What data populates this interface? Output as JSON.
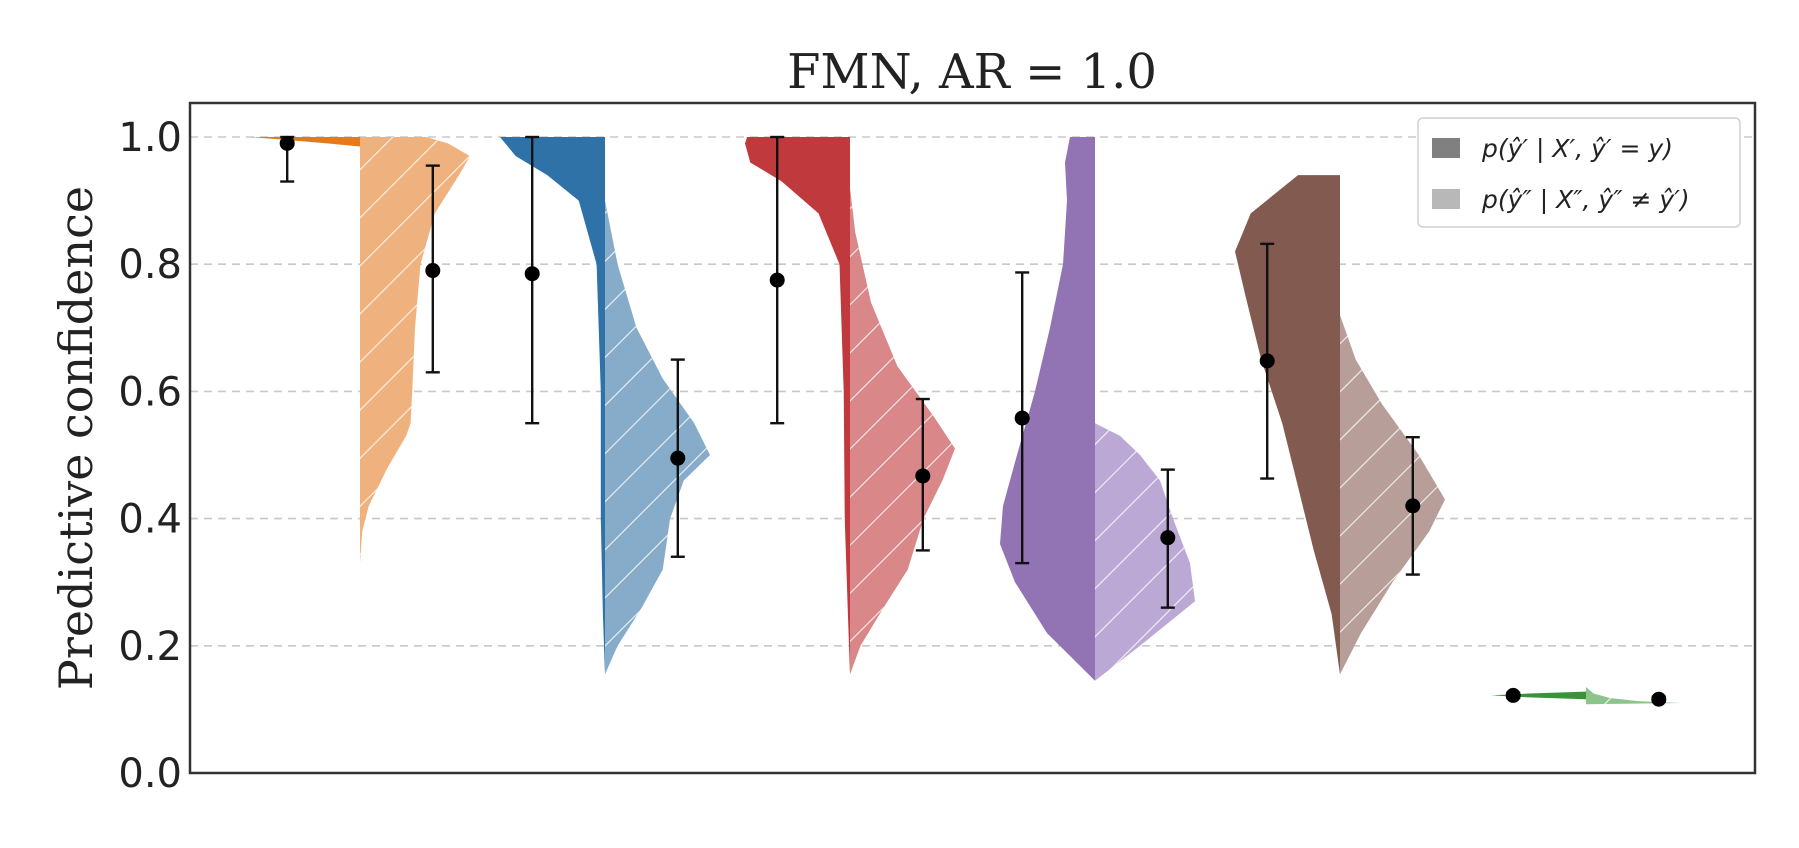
{
  "chart_data": {
    "type": "violin",
    "title": "FMN, AR = 1.0",
    "xlabel": "",
    "ylabel": "Predictive confidence",
    "ylim": [
      0.0,
      1.05
    ],
    "yticks": [
      "0.0",
      "0.2",
      "0.4",
      "0.6",
      "0.8",
      "1.0"
    ],
    "grid": "horizontal dashed",
    "legend_placement": "top-right",
    "legend": [
      {
        "label": "p(ŷ′ | X′, ŷ′ = y)",
        "style": "solid",
        "color": "#808080"
      },
      {
        "label": "p(ŷ″ | X″, ŷ″ ≠ ŷ′)",
        "style": "light",
        "color": "#b8b8b8"
      }
    ],
    "groups": [
      {
        "color": "#e37a1c",
        "light_color": "#efb27e",
        "left": {
          "mean": 0.99,
          "err_low": 0.93,
          "err_high": 1.0,
          "min": 0.985,
          "max": 1.0,
          "profile": [
            [
              0.985,
              0.0
            ],
            [
              0.99,
              0.3
            ],
            [
              0.995,
              0.65
            ],
            [
              1.0,
              1.0
            ]
          ]
        },
        "right": {
          "mean": 0.79,
          "err_low": 0.63,
          "err_high": 0.955,
          "min": 0.33,
          "max": 1.0,
          "profile": [
            [
              0.33,
              0.0
            ],
            [
              0.38,
              0.02
            ],
            [
              0.42,
              0.08
            ],
            [
              0.48,
              0.25
            ],
            [
              0.53,
              0.42
            ],
            [
              0.55,
              0.46
            ],
            [
              0.62,
              0.48
            ],
            [
              0.7,
              0.5
            ],
            [
              0.8,
              0.55
            ],
            [
              0.88,
              0.68
            ],
            [
              0.94,
              0.9
            ],
            [
              0.97,
              1.0
            ],
            [
              0.99,
              0.8
            ],
            [
              1.0,
              0.6
            ]
          ]
        }
      },
      {
        "color": "#2e72a8",
        "light_color": "#86acca",
        "left": {
          "mean": 0.785,
          "err_low": 0.55,
          "err_high": 1.0,
          "min": 0.155,
          "max": 1.0,
          "profile": [
            [
              0.155,
              0.0
            ],
            [
              0.25,
              0.02
            ],
            [
              0.4,
              0.04
            ],
            [
              0.6,
              0.04
            ],
            [
              0.8,
              0.08
            ],
            [
              0.9,
              0.25
            ],
            [
              0.94,
              0.55
            ],
            [
              0.97,
              0.85
            ],
            [
              0.99,
              0.95
            ],
            [
              1.0,
              1.0
            ]
          ]
        },
        "right": {
          "mean": 0.495,
          "err_low": 0.34,
          "err_high": 0.65,
          "min": 0.155,
          "max": 0.9,
          "profile": [
            [
              0.155,
              0.0
            ],
            [
              0.2,
              0.12
            ],
            [
              0.26,
              0.35
            ],
            [
              0.32,
              0.55
            ],
            [
              0.4,
              0.62
            ],
            [
              0.46,
              0.75
            ],
            [
              0.5,
              1.0
            ],
            [
              0.55,
              0.85
            ],
            [
              0.62,
              0.55
            ],
            [
              0.7,
              0.3
            ],
            [
              0.8,
              0.12
            ],
            [
              0.9,
              0.0
            ]
          ]
        }
      },
      {
        "color": "#c0393c",
        "light_color": "#d98788",
        "left": {
          "mean": 0.775,
          "err_low": 0.55,
          "err_high": 1.0,
          "min": 0.155,
          "max": 1.0,
          "profile": [
            [
              0.155,
              0.0
            ],
            [
              0.25,
              0.02
            ],
            [
              0.4,
              0.05
            ],
            [
              0.6,
              0.06
            ],
            [
              0.8,
              0.1
            ],
            [
              0.88,
              0.3
            ],
            [
              0.93,
              0.65
            ],
            [
              0.96,
              0.95
            ],
            [
              0.99,
              1.0
            ],
            [
              1.0,
              0.98
            ]
          ]
        },
        "right": {
          "mean": 0.467,
          "err_low": 0.35,
          "err_high": 0.588,
          "min": 0.155,
          "max": 0.92,
          "profile": [
            [
              0.155,
              0.0
            ],
            [
              0.2,
              0.1
            ],
            [
              0.26,
              0.32
            ],
            [
              0.32,
              0.55
            ],
            [
              0.4,
              0.7
            ],
            [
              0.46,
              0.88
            ],
            [
              0.51,
              1.0
            ],
            [
              0.56,
              0.8
            ],
            [
              0.64,
              0.45
            ],
            [
              0.74,
              0.2
            ],
            [
              0.85,
              0.05
            ],
            [
              0.92,
              0.0
            ]
          ]
        }
      },
      {
        "color": "#9274b4",
        "light_color": "#bba8d4",
        "left": {
          "mean": 0.558,
          "err_low": 0.33,
          "err_high": 0.787,
          "min": 0.145,
          "max": 1.0,
          "profile": [
            [
              0.145,
              0.0
            ],
            [
              0.22,
              0.48
            ],
            [
              0.3,
              0.8
            ],
            [
              0.36,
              0.95
            ],
            [
              0.42,
              0.92
            ],
            [
              0.5,
              0.78
            ],
            [
              0.6,
              0.6
            ],
            [
              0.7,
              0.45
            ],
            [
              0.8,
              0.32
            ],
            [
              0.9,
              0.28
            ],
            [
              0.96,
              0.3
            ],
            [
              1.0,
              0.25
            ]
          ]
        },
        "right": {
          "mean": 0.37,
          "err_low": 0.26,
          "err_high": 0.477,
          "min": 0.145,
          "max": 0.55,
          "profile": [
            [
              0.145,
              0.0
            ],
            [
              0.2,
              0.45
            ],
            [
              0.27,
              1.0
            ],
            [
              0.33,
              0.95
            ],
            [
              0.4,
              0.78
            ],
            [
              0.46,
              0.65
            ],
            [
              0.5,
              0.45
            ],
            [
              0.53,
              0.25
            ],
            [
              0.55,
              0.0
            ]
          ]
        }
      },
      {
        "color": "#825a50",
        "light_color": "#b79e98",
        "left": {
          "mean": 0.648,
          "err_low": 0.463,
          "err_high": 0.832,
          "min": 0.155,
          "max": 0.94,
          "profile": [
            [
              0.155,
              0.0
            ],
            [
              0.25,
              0.08
            ],
            [
              0.35,
              0.25
            ],
            [
              0.45,
              0.4
            ],
            [
              0.55,
              0.55
            ],
            [
              0.65,
              0.75
            ],
            [
              0.75,
              0.9
            ],
            [
              0.82,
              1.0
            ],
            [
              0.88,
              0.85
            ],
            [
              0.94,
              0.4
            ]
          ]
        },
        "right": {
          "mean": 0.42,
          "err_low": 0.312,
          "err_high": 0.528,
          "min": 0.155,
          "max": 0.72,
          "profile": [
            [
              0.155,
              0.0
            ],
            [
              0.22,
              0.2
            ],
            [
              0.3,
              0.5
            ],
            [
              0.38,
              0.85
            ],
            [
              0.43,
              1.0
            ],
            [
              0.5,
              0.75
            ],
            [
              0.58,
              0.4
            ],
            [
              0.65,
              0.15
            ],
            [
              0.72,
              0.0
            ]
          ]
        }
      },
      {
        "color": "#3a923a",
        "light_color": "#8cc48c",
        "left": {
          "mean": 0.122,
          "err_low": 0.118,
          "err_high": 0.126,
          "min": 0.116,
          "max": 0.128,
          "profile": [
            [
              0.116,
              0.0
            ],
            [
              0.119,
              0.6
            ],
            [
              0.122,
              1.0
            ],
            [
              0.125,
              0.6
            ],
            [
              0.128,
              0.0
            ]
          ]
        },
        "right": {
          "mean": 0.116,
          "err_low": 0.112,
          "err_high": 0.12,
          "min": 0.108,
          "max": 0.135,
          "profile": [
            [
              0.108,
              0.0
            ],
            [
              0.11,
              1.0
            ],
            [
              0.113,
              0.55
            ],
            [
              0.118,
              0.25
            ],
            [
              0.125,
              0.08
            ],
            [
              0.135,
              0.0
            ]
          ]
        }
      }
    ]
  }
}
